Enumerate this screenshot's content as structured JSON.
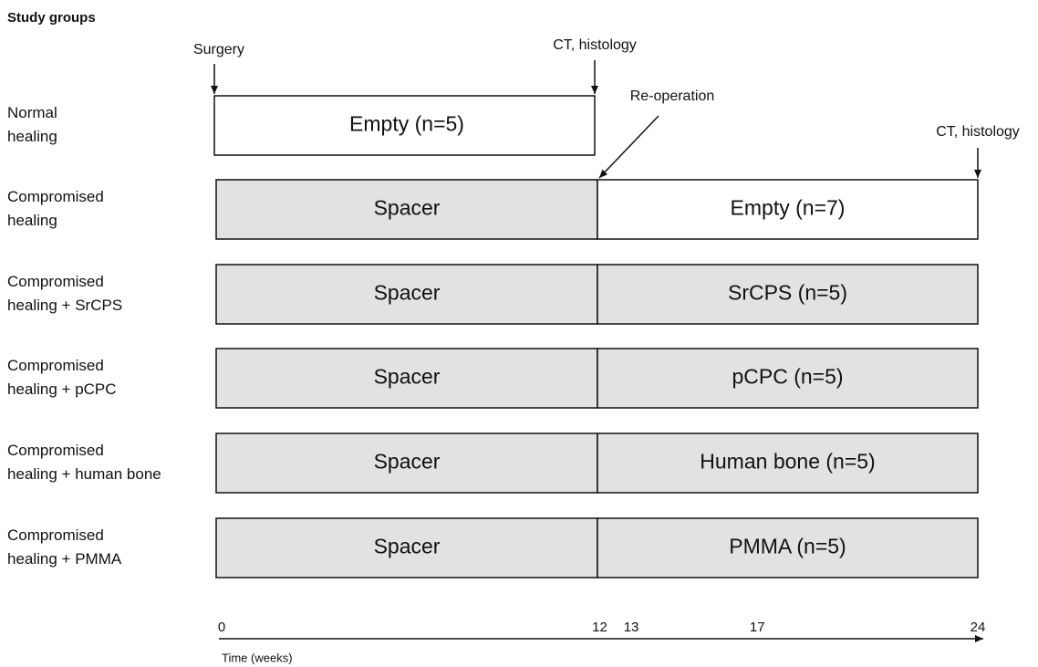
{
  "title": "Study groups",
  "annotations": {
    "surgery": "Surgery",
    "ct_first": "CT, histology",
    "reoperation": "Re-operation",
    "ct_second": "CT, histology"
  },
  "groups": [
    {
      "label": [
        "Normal",
        "healing"
      ],
      "phase1": "Empty (n=5)"
    },
    {
      "label": [
        "Compromised",
        "healing"
      ],
      "phase1": "Spacer",
      "phase2": "Empty (n=7)"
    },
    {
      "label": [
        "Compromised",
        "healing + SrCPS"
      ],
      "phase1": "Spacer",
      "phase2": "SrCPS (n=5)"
    },
    {
      "label": [
        "Compromised",
        "healing + pCPC"
      ],
      "phase1": "Spacer",
      "phase2": "pCPC (n=5)"
    },
    {
      "label": [
        "Compromised",
        "healing + human bone"
      ],
      "phase1": "Spacer",
      "phase2": "Human bone (n=5)"
    },
    {
      "label": [
        "Compromised",
        "healing + PMMA"
      ],
      "phase1": "Spacer",
      "phase2": "PMMA (n=5)"
    }
  ],
  "axis": {
    "label": "Time (weeks)",
    "ticks": [
      0,
      12,
      13,
      17,
      24
    ]
  }
}
